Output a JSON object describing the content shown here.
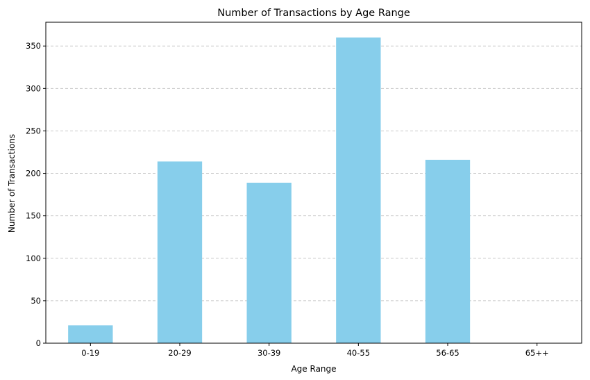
{
  "chart_data": {
    "type": "bar",
    "title": "Number of Transactions by Age Range",
    "xlabel": "Age Range",
    "ylabel": "Number of Transactions",
    "categories": [
      "0-19",
      "20-29",
      "30-39",
      "40-55",
      "56-65",
      "65++"
    ],
    "values": [
      21,
      214,
      189,
      360,
      216,
      0
    ],
    "ylim": [
      0,
      378
    ],
    "yticks": [
      0,
      50,
      100,
      150,
      200,
      250,
      300,
      350
    ],
    "grid": "y-dashed",
    "legend": "none",
    "colors": {
      "bar": "#87CEEB",
      "grid": "#c8c8c8",
      "axis": "#000000"
    }
  }
}
